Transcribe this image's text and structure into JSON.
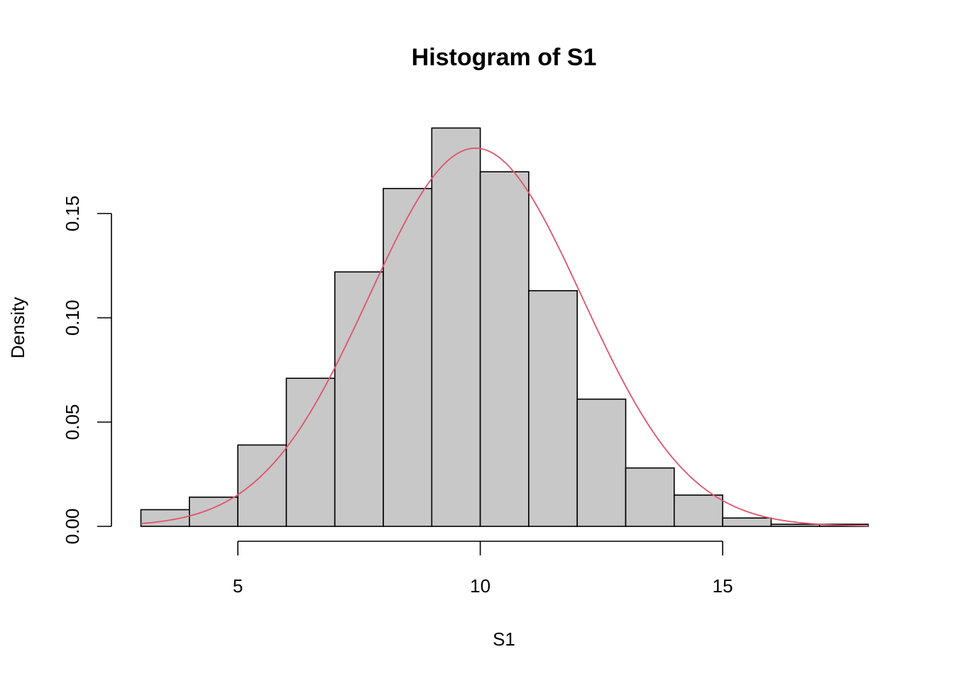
{
  "chart_data": {
    "type": "bar",
    "title": "Histogram of S1",
    "xlabel": "S1",
    "ylabel": "Density",
    "xlim": [
      3,
      18
    ],
    "ylim": [
      0,
      0.19
    ],
    "x_ticks": [
      5,
      10,
      15
    ],
    "x_tick_labels": [
      "5",
      "10",
      "15"
    ],
    "y_ticks": [
      0,
      0.05,
      0.1,
      0.15
    ],
    "y_tick_labels": [
      "0.00",
      "0.05",
      "0.10",
      "0.15"
    ],
    "grid": false,
    "bins": [
      {
        "start": 3,
        "end": 4,
        "density": 0.008
      },
      {
        "start": 4,
        "end": 5,
        "density": 0.014
      },
      {
        "start": 5,
        "end": 6,
        "density": 0.039
      },
      {
        "start": 6,
        "end": 7,
        "density": 0.071
      },
      {
        "start": 7,
        "end": 8,
        "density": 0.122
      },
      {
        "start": 8,
        "end": 9,
        "density": 0.162
      },
      {
        "start": 9,
        "end": 10,
        "density": 0.191
      },
      {
        "start": 10,
        "end": 11,
        "density": 0.17
      },
      {
        "start": 11,
        "end": 12,
        "density": 0.113
      },
      {
        "start": 12,
        "end": 13,
        "density": 0.061
      },
      {
        "start": 13,
        "end": 14,
        "density": 0.028
      },
      {
        "start": 14,
        "end": 15,
        "density": 0.015
      },
      {
        "start": 15,
        "end": 16,
        "density": 0.004
      },
      {
        "start": 16,
        "end": 17,
        "density": 0.001
      },
      {
        "start": 17,
        "end": 18,
        "density": 0.001
      }
    ],
    "overlay": {
      "type": "normal-density-curve",
      "mean": 9.9,
      "sd": 2.2,
      "color": "#DF536B"
    },
    "bar_fill": "#C8C8C8"
  }
}
